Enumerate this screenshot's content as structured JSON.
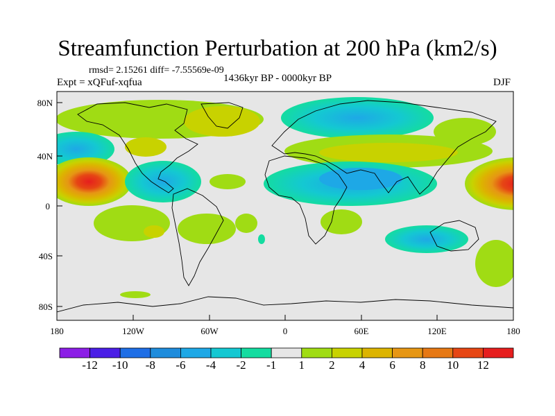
{
  "title": "Streamfunction Perturbation at 200 hPa (km2/s)",
  "stats": "rmsd= 2.15261 diff= -7.55569e-09",
  "experiment": "Expt = xQFuf-xqfua",
  "period": "1436kyr BP - 0000kyr BP",
  "season": "DJF",
  "axes": {
    "lon_labels": [
      "180",
      "120W",
      "60W",
      "0",
      "60E",
      "120E",
      "180"
    ],
    "lat_labels": [
      "80N",
      "40N",
      "0",
      "40S",
      "80S"
    ]
  },
  "colorbar": {
    "labels": [
      "-12",
      "-10",
      "-8",
      "-6",
      "-4",
      "-2",
      "-1",
      "1",
      "2",
      "4",
      "6",
      "8",
      "10",
      "12"
    ],
    "colors": [
      "#8c1ee6",
      "#4b1ee6",
      "#1e6ee6",
      "#1e8cdc",
      "#1ea8e6",
      "#14c8d2",
      "#14dca0",
      "#e6e6e6",
      "#a0dc14",
      "#c8d200",
      "#dcb400",
      "#e69614",
      "#e67814",
      "#e64614",
      "#e61e1e"
    ]
  },
  "colors": {
    "background": "#e6e6e6",
    "neg_strong": "#14c8d2",
    "neg_mid": "#14dca0",
    "pos_mid": "#a0dc14",
    "pos_strong": "#c8d200"
  }
}
